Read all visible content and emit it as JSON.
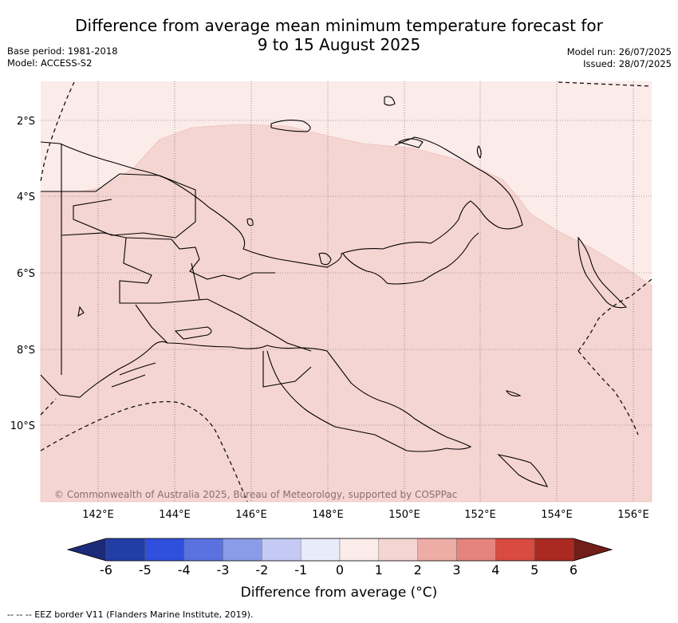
{
  "title": {
    "line1": "Difference from average mean minimum temperature forecast for",
    "line2": "9 to 15 August 2025"
  },
  "meta": {
    "base_period": "Base period: 1981-2018",
    "model": "Model: ACCESS-S2",
    "model_run": "Model run: 26/07/2025",
    "issued": "Issued: 28/07/2025"
  },
  "map": {
    "lat_labels": [
      "2°S",
      "4°S",
      "6°S",
      "8°S",
      "10°S"
    ],
    "lon_labels": [
      "142°E",
      "144°E",
      "146°E",
      "148°E",
      "150°E",
      "152°E",
      "154°E",
      "156°E"
    ],
    "background_color": "#fbebe9",
    "shade_color": "#f5d5d1",
    "credit": "© Commonwealth of Australia 2025, Bureau of Meteorology, supported by COSPPac"
  },
  "colorbar": {
    "ticks": [
      "-6",
      "-5",
      "-4",
      "-3",
      "-2",
      "-1",
      "0",
      "1",
      "2",
      "3",
      "4",
      "5",
      "6"
    ],
    "colors": [
      "#233da6",
      "#2f4fdc",
      "#5a72e0",
      "#8a9be8",
      "#c4caf3",
      "#e8ecfa",
      "#fbebe9",
      "#f5d5d1",
      "#eeaca6",
      "#e5847d",
      "#d94b40",
      "#aa2921"
    ],
    "low_extend_color": "#1c2a7a",
    "high_extend_color": "#731d18",
    "title": "Difference from average (°C)"
  },
  "footnote": "--  --  -- EEZ border V11 (Flanders Marine Institute, 2019)."
}
